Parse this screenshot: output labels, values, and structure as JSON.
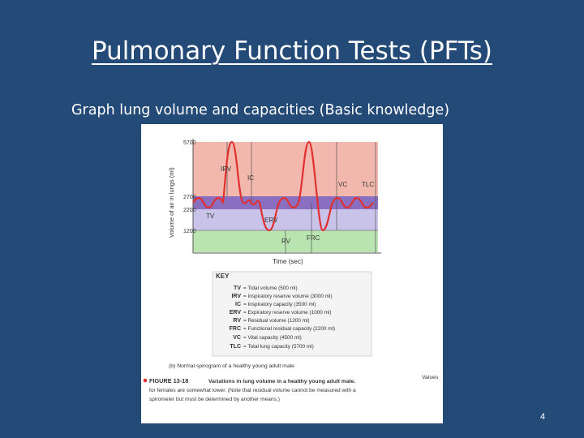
{
  "slide": {
    "title": "Pulmonary Function Tests (PFTs)",
    "subtitle": "Graph lung volume and capacities (Basic knowledge)",
    "page_number": "4"
  },
  "colors": {
    "background": "#244a78",
    "irv_zone": "#f2b8ae",
    "tv_zone": "#8a6fc0",
    "erv_zone": "#c9c3ea",
    "rv_zone": "#b9e4b0",
    "trace": "#e03030"
  },
  "spirogram": {
    "y_axis_label": "Volume of air in lungs (ml)",
    "x_axis_label": "Time (sec)",
    "y_ticks": [
      "5700",
      "2700",
      "2200",
      "1200"
    ],
    "zone_labels": {
      "irv": "IRV",
      "ic": "IC",
      "vc": "VC",
      "tlc": "TLC",
      "tv": "TV",
      "erv": "ERV",
      "rv": "RV",
      "frc": "FRC"
    },
    "key": {
      "title": "KEY",
      "entries": [
        {
          "abbr": "TV",
          "desc": "= Tidal volume (500 ml)"
        },
        {
          "abbr": "IRV",
          "desc": "= Inspiratory reserve volume (3000 ml)"
        },
        {
          "abbr": "IC",
          "desc": "= Inspiratory capacity (3500 ml)"
        },
        {
          "abbr": "ERV",
          "desc": "= Expiratory reserve volume (1000 ml)"
        },
        {
          "abbr": "RV",
          "desc": "= Residual volume (1200 ml)"
        },
        {
          "abbr": "FRC",
          "desc": "= Functional residual capacity (2200 ml)"
        },
        {
          "abbr": "VC",
          "desc": "= Vital capacity (4500 ml)"
        },
        {
          "abbr": "TLC",
          "desc": "= Total lung capacity (5700 ml)"
        }
      ]
    },
    "caption_b": "(b)  Normal spirogram of a healthy young adult male",
    "figure_label": "FIGURE 13-18",
    "figure_title": "Variations in lung volume in a healthy young adult male.",
    "figure_text_1": "Values",
    "figure_text_2": "for females are somewhat lower. (Note that residual volume cannot be measured with a",
    "figure_text_3": "spirometer but must be determined by another means.)"
  }
}
